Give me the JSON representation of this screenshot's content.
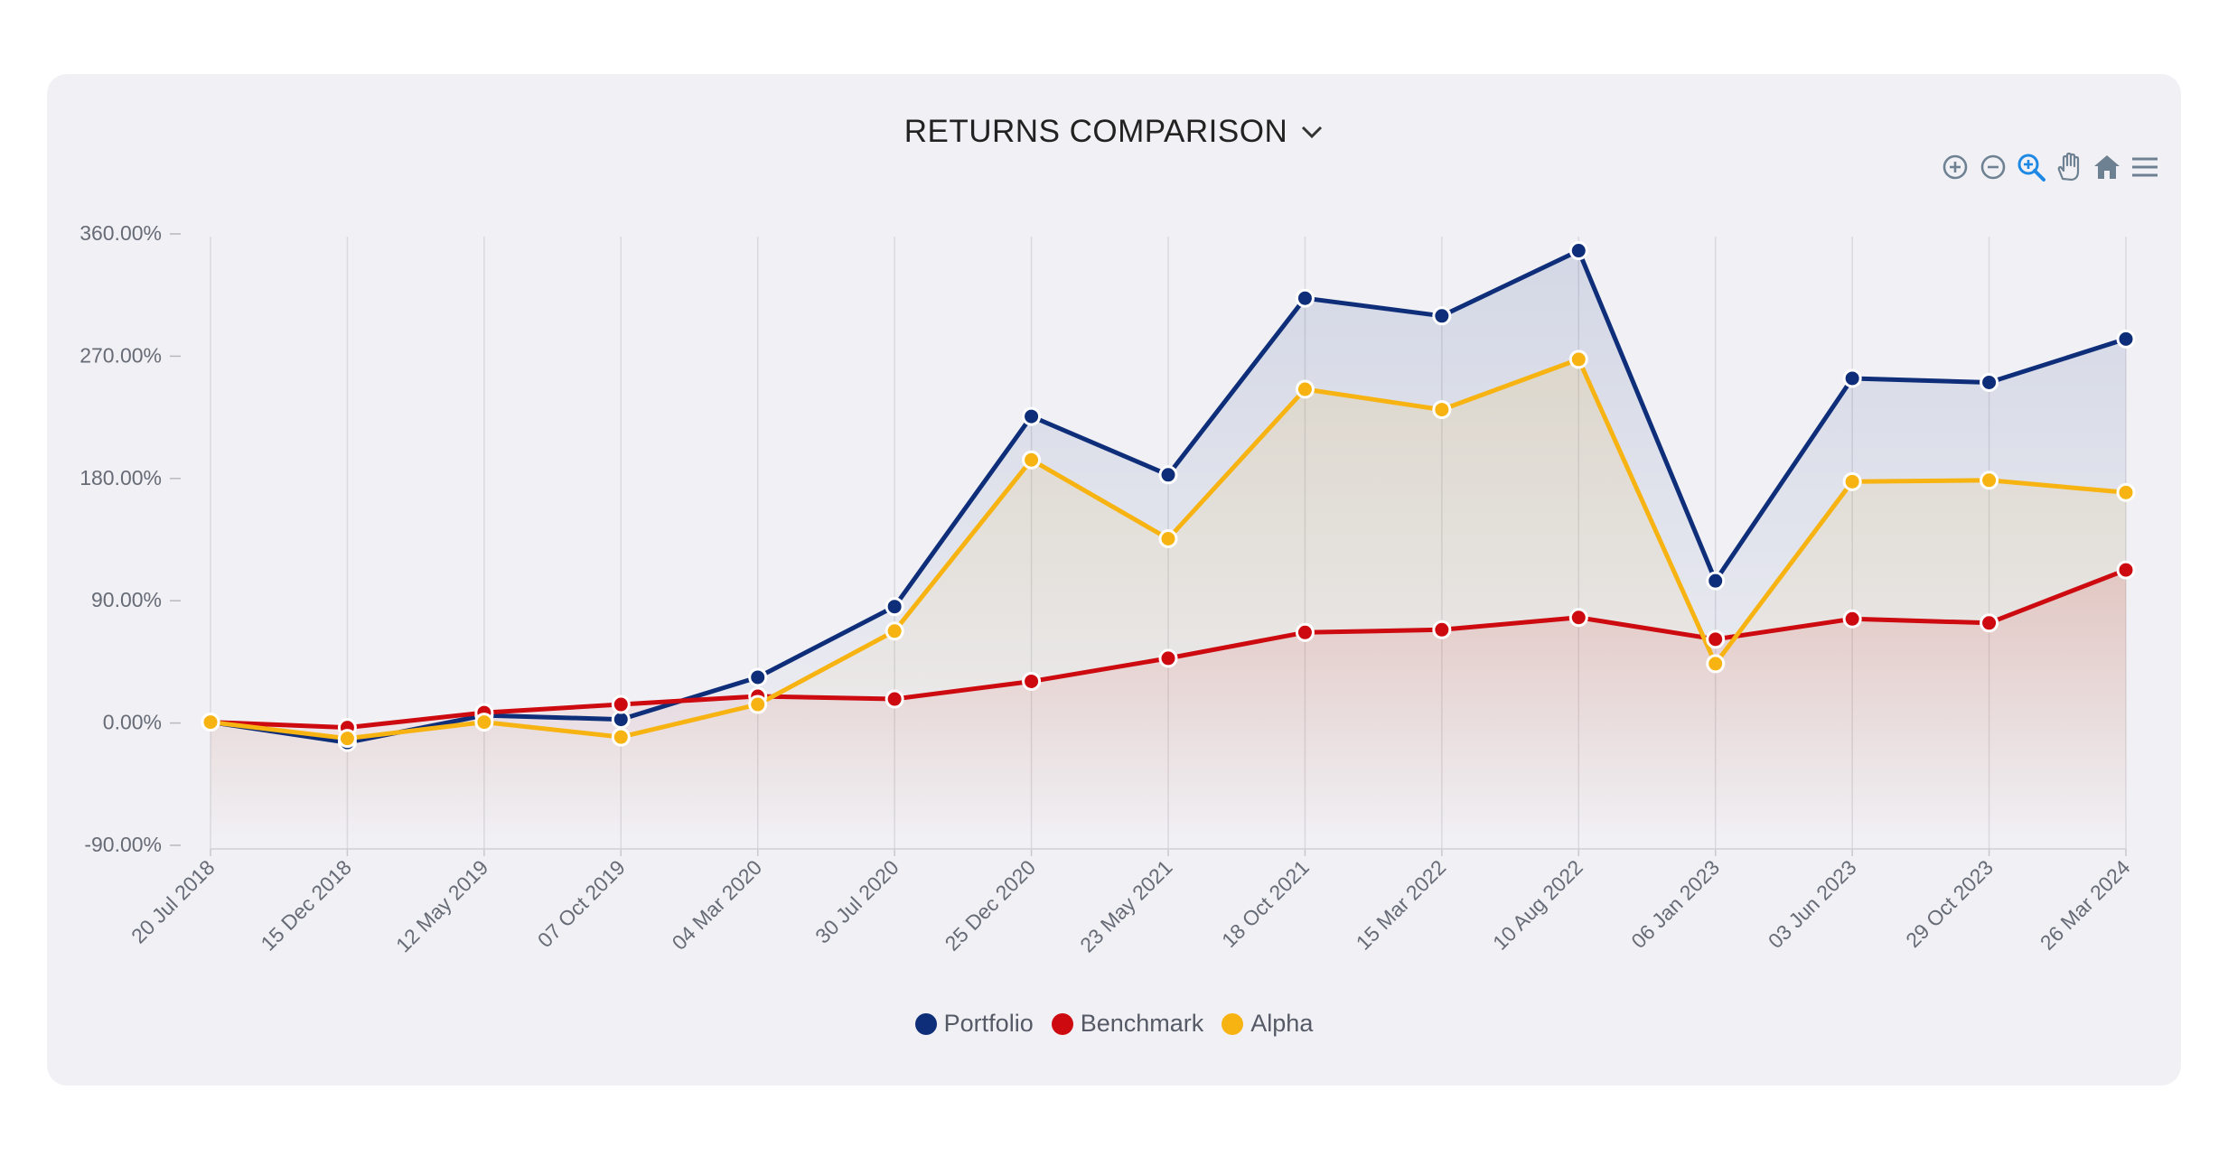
{
  "chart_data": {
    "type": "line",
    "title": "RETURNS COMPARISON",
    "categories": [
      "20 Jul 2018",
      "15 Dec 2018",
      "12 May 2019",
      "07 Oct 2019",
      "04 Mar 2020",
      "30 Jul 2020",
      "25 Dec 2020",
      "23 May 2021",
      "18 Oct 2021",
      "15 Mar 2022",
      "10 Aug 2022",
      "06 Jan 2023",
      "03 Jun 2023",
      "29 Oct 2023",
      "26 Mar 2024"
    ],
    "series": [
      {
        "name": "Portfolio",
        "color": "#0f2e7a",
        "fill": "area",
        "values": [
          0,
          -15,
          5,
          2,
          33,
          85,
          225,
          182,
          312,
          299,
          347,
          104,
          253,
          250,
          282
        ]
      },
      {
        "name": "Benchmark",
        "color": "#cc0a0f",
        "fill": "area",
        "values": [
          0,
          -4,
          7,
          13,
          19,
          17,
          30,
          47,
          66,
          68,
          77,
          61,
          76,
          73,
          112
        ]
      },
      {
        "name": "Alpha",
        "color": "#f7b312",
        "fill": "area",
        "values": [
          0,
          -12,
          0,
          -11,
          13,
          67,
          193,
          135,
          245,
          230,
          267,
          43,
          177,
          178,
          169
        ]
      }
    ],
    "yticks": [
      "360.00%",
      "270.00%",
      "180.00%",
      "90.00%",
      "0.00%",
      "-90.00%"
    ],
    "ytick_values": [
      360,
      270,
      180,
      90,
      0,
      -90
    ],
    "ylim": [
      -90,
      360
    ],
    "xlabel": "",
    "ylabel": "",
    "grid": "vertical",
    "legend": "bottom-center"
  },
  "toolbar": {
    "icons": [
      "zoom-in-icon",
      "zoom-out-icon",
      "selection-zoom-icon",
      "pan-hand-icon",
      "home-reset-icon",
      "menu-icon"
    ],
    "active_color": "#1e88e5",
    "icon_color": "#6e8192"
  }
}
